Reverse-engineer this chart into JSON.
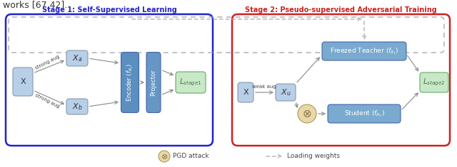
{
  "fig_width": 6.4,
  "fig_height": 2.35,
  "dpi": 100,
  "stage1_title": "Stage 1: Self-Supervised Learning",
  "stage2_title": "Stage 2: Pseudo-supervised Adversarial Training",
  "stage1_color": "#2222cc",
  "stage2_color": "#cc2222",
  "box_blue_light": "#b8cfe8",
  "box_blue_mid": "#7aaacf",
  "box_blue_dark": "#5a8fbf",
  "box_green_light": "#c8e8c8",
  "box_tan": "#e8d8a8",
  "arrow_color": "#888888",
  "text_color": "#444444",
  "background": "#ffffff",
  "top_text": "works [67,42].",
  "pgd_label": "PGD attack",
  "lw_label": "Loading weights"
}
